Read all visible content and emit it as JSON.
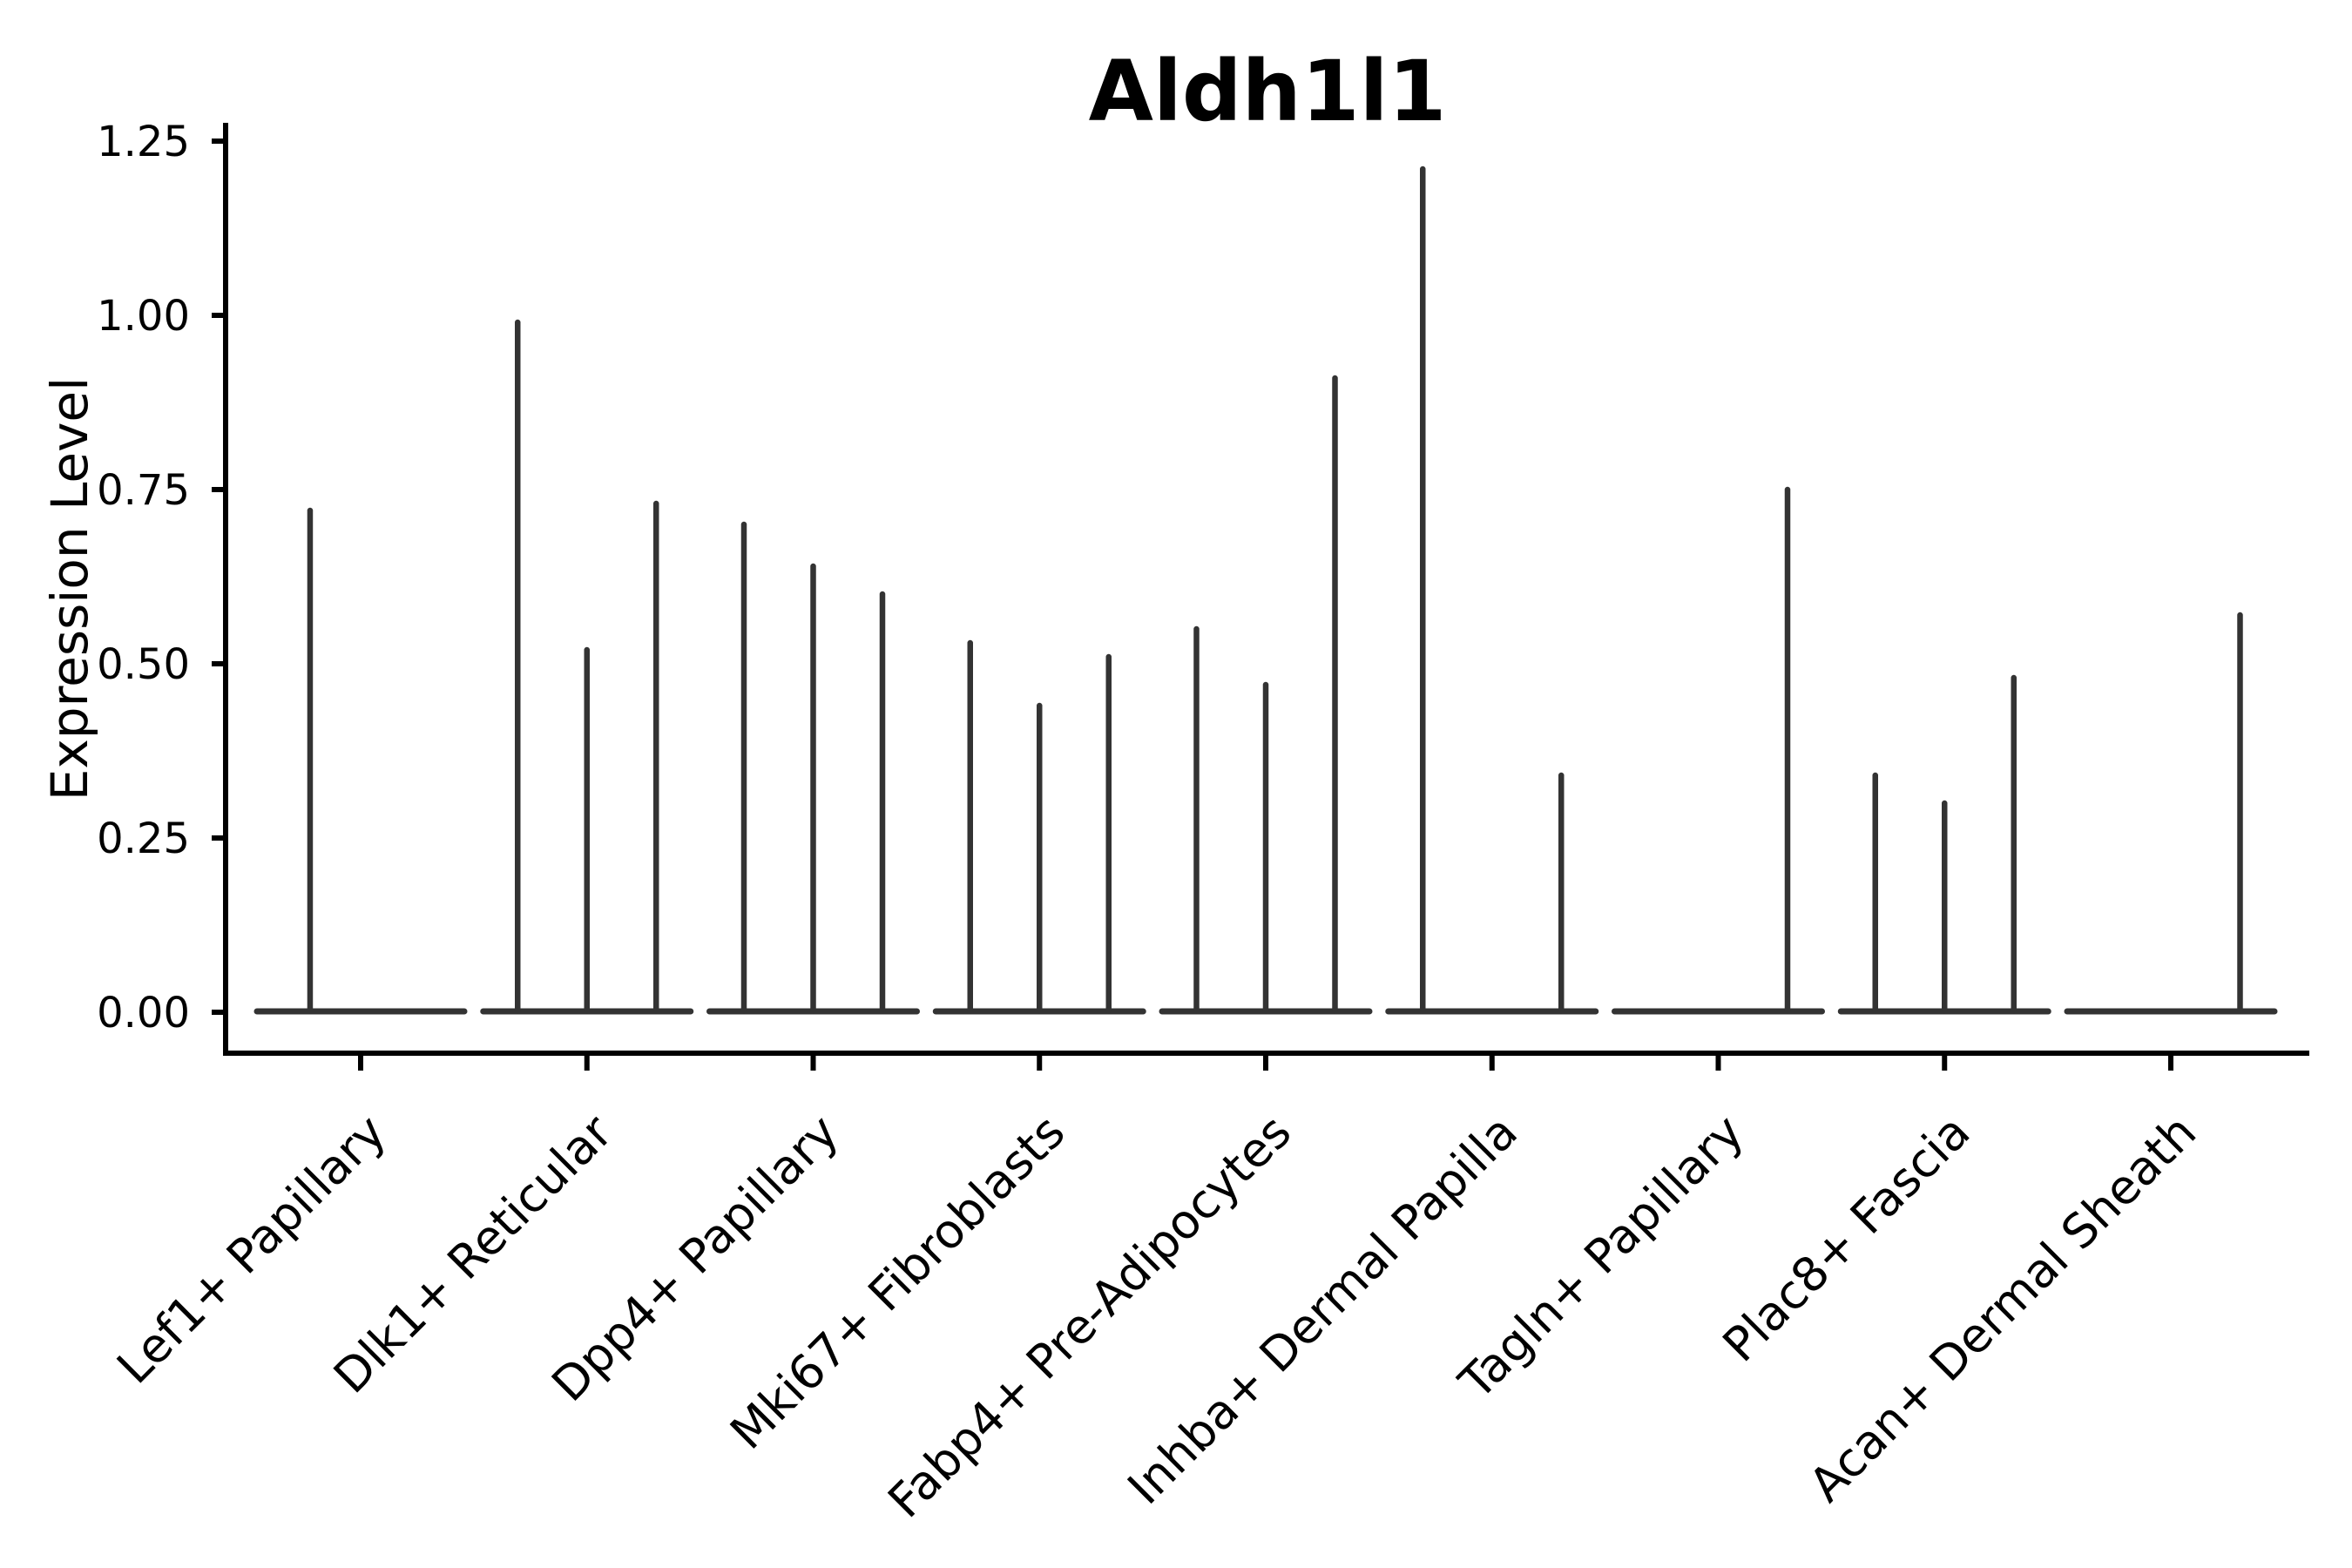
{
  "chart_data": {
    "type": "violin",
    "title": "Aldh1l1",
    "ylabel": "Expression Level",
    "xlabel": "",
    "grid": false,
    "legend_position": "none",
    "background_color": "#ffffff",
    "violin_color": "#333333",
    "axis_color": "#000000",
    "text_color": "#000000",
    "ylim": [
      -0.06,
      1.28
    ],
    "yticks": [
      0.0,
      0.25,
      0.5,
      0.75,
      1.0,
      1.25
    ],
    "ytick_labels": [
      "0.00",
      "0.25",
      "0.50",
      "0.75",
      "1.00",
      "1.25"
    ],
    "categories": [
      "Lef1+ Papillary",
      "Dlk1+ Reticular",
      "Dpp4+ Papillary",
      "Mki67+ Fibroblasts",
      "Fabp4+ Pre-Adipocytes",
      "Inhba+ Dermal Papilla",
      "Tagln+ Papillary",
      "Plac8+ Fascia",
      "Acan+ Dermal Sheath"
    ],
    "violins": [
      {
        "category": "Lef1+ Papillary",
        "spikes": [
          {
            "slot": -0.73,
            "max": 0.72
          }
        ]
      },
      {
        "category": "Dlk1+ Reticular",
        "spikes": [
          {
            "slot": -1,
            "max": 0.99
          },
          {
            "slot": 0,
            "max": 0.52
          },
          {
            "slot": 1,
            "max": 0.73
          }
        ]
      },
      {
        "category": "Dpp4+ Papillary",
        "spikes": [
          {
            "slot": -1,
            "max": 0.7
          },
          {
            "slot": 0,
            "max": 0.64
          },
          {
            "slot": 1,
            "max": 0.6
          }
        ]
      },
      {
        "category": "Mki67+ Fibroblasts",
        "spikes": [
          {
            "slot": -1,
            "max": 0.53
          },
          {
            "slot": 0,
            "max": 0.44
          },
          {
            "slot": 1,
            "max": 0.51
          }
        ]
      },
      {
        "category": "Fabp4+ Pre-Adipocytes",
        "spikes": [
          {
            "slot": -1,
            "max": 0.55
          },
          {
            "slot": 0,
            "max": 0.47
          },
          {
            "slot": 1,
            "max": 0.91
          }
        ]
      },
      {
        "category": "Inhba+ Dermal Papilla",
        "spikes": [
          {
            "slot": -1,
            "max": 1.21
          },
          {
            "slot": 1,
            "max": 0.34
          }
        ]
      },
      {
        "category": "Tagln+ Papillary",
        "spikes": [
          {
            "slot": 1,
            "max": 0.75
          }
        ]
      },
      {
        "category": "Plac8+ Fascia",
        "spikes": [
          {
            "slot": -1,
            "max": 0.34
          },
          {
            "slot": 0,
            "max": 0.3
          },
          {
            "slot": 1,
            "max": 0.48
          }
        ]
      },
      {
        "category": "Acan+ Dermal Sheath",
        "spikes": [
          {
            "slot": 1,
            "max": 0.57
          }
        ]
      }
    ]
  }
}
